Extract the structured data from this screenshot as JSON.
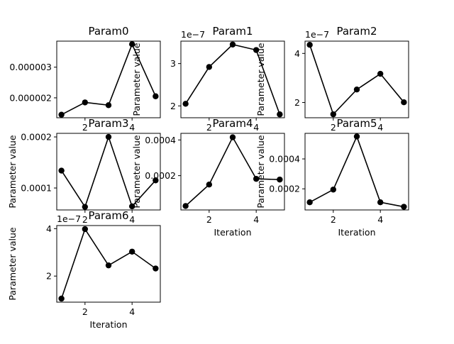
{
  "figure": {
    "xlabel": "Iteration",
    "ylabel": "Parameter value"
  },
  "colors": {
    "line": "#000000",
    "marker": "#000000",
    "axes": "#000000",
    "background": "#ffffff"
  },
  "chart_data": [
    {
      "type": "line",
      "title": "Param0",
      "x": [
        1,
        2,
        3,
        4,
        5
      ],
      "values": [
        1.45e-06,
        1.85e-06,
        1.76e-06,
        3.75e-06,
        2.05e-06
      ],
      "ylim": [
        1.35e-06,
        3.85e-06
      ],
      "xlim": [
        0.8,
        5.2
      ],
      "xticks": [
        2,
        4
      ],
      "xtick_labels": [
        "2",
        "4"
      ],
      "yticks": [
        2e-06,
        3e-06
      ],
      "ytick_labels": [
        "0.000002",
        "0.000003"
      ],
      "offset_text": "",
      "xlabel": "",
      "ylabel": ""
    },
    {
      "type": "line",
      "title": "Param1",
      "x": [
        1,
        2,
        3,
        4,
        5
      ],
      "values": [
        2.05e-07,
        2.92e-07,
        3.45e-07,
        3.32e-07,
        1.8e-07
      ],
      "ylim": [
        1.72e-07,
        3.53e-07
      ],
      "xlim": [
        0.8,
        5.2
      ],
      "xticks": [
        2,
        4
      ],
      "xtick_labels": [
        "2",
        "4"
      ],
      "yticks": [
        2e-07,
        3e-07
      ],
      "ytick_labels": [
        "2",
        "3"
      ],
      "offset_text": "1e−7",
      "xlabel": "",
      "ylabel": "Parameter value"
    },
    {
      "type": "line",
      "title": "Param2",
      "x": [
        1,
        2,
        3,
        4,
        5
      ],
      "values": [
        4.35e-07,
        1.52e-07,
        2.53e-07,
        3.17e-07,
        2.01e-07
      ],
      "ylim": [
        1.38e-07,
        4.5e-07
      ],
      "xlim": [
        0.8,
        5.2
      ],
      "xticks": [
        2,
        4
      ],
      "xtick_labels": [
        "2",
        "4"
      ],
      "yticks": [
        2e-07,
        4e-07
      ],
      "ytick_labels": [
        "2",
        "4"
      ],
      "offset_text": "1e−7",
      "xlabel": "",
      "ylabel": "Parameter value"
    },
    {
      "type": "line",
      "title": "Param3",
      "x": [
        1,
        2,
        3,
        4,
        5
      ],
      "values": [
        0.000134,
        6.3e-05,
        0.0002,
        6.4e-05,
        0.000115
      ],
      "ylim": [
        5.7e-05,
        0.000207
      ],
      "xlim": [
        0.8,
        5.2
      ],
      "xticks": [
        2,
        4
      ],
      "xtick_labels": [
        "2",
        "4"
      ],
      "yticks": [
        0.0001,
        0.0002
      ],
      "ytick_labels": [
        "0.0001",
        "0.0002"
      ],
      "offset_text": "",
      "xlabel": "",
      "ylabel": "Parameter value"
    },
    {
      "type": "line",
      "title": "Param4",
      "x": [
        1,
        2,
        3,
        4,
        5
      ],
      "values": [
        3e-05,
        0.00015,
        0.000415,
        0.000182,
        0.000178
      ],
      "ylim": [
        7.7e-06,
        0.000437
      ],
      "xlim": [
        0.8,
        5.2
      ],
      "xticks": [
        2,
        4
      ],
      "xtick_labels": [
        "2",
        "4"
      ],
      "yticks": [
        0.0002,
        0.0004
      ],
      "ytick_labels": [
        "0.0002",
        "0.0004"
      ],
      "offset_text": "",
      "xlabel": "Iteration",
      "ylabel": "Parameter value"
    },
    {
      "type": "line",
      "title": "Param5",
      "x": [
        1,
        2,
        3,
        4,
        5
      ],
      "values": [
        0.00011,
        0.000195,
        0.00055,
        0.00011,
        8e-05
      ],
      "ylim": [
        5.88e-05,
        0.000571
      ],
      "xlim": [
        0.8,
        5.2
      ],
      "xticks": [
        2,
        4
      ],
      "xtick_labels": [
        "2",
        "4"
      ],
      "yticks": [
        0.0002,
        0.0004
      ],
      "ytick_labels": [
        "0.0002",
        "0.0004"
      ],
      "offset_text": "",
      "xlabel": "Iteration",
      "ylabel": "Parameter value"
    },
    {
      "type": "line",
      "title": "Param6",
      "x": [
        1,
        2,
        3,
        4,
        5
      ],
      "values": [
        1.05e-07,
        3.98e-07,
        2.45e-07,
        3.03e-07,
        2.32e-07
      ],
      "ylim": [
        9e-08,
        4.13e-07
      ],
      "xlim": [
        0.8,
        5.2
      ],
      "xticks": [
        2,
        4
      ],
      "xtick_labels": [
        "2",
        "4"
      ],
      "yticks": [
        2e-07,
        4e-07
      ],
      "ytick_labels": [
        "2",
        "4"
      ],
      "offset_text": "1e−7",
      "xlabel": "Iteration",
      "ylabel": "Parameter value"
    }
  ]
}
